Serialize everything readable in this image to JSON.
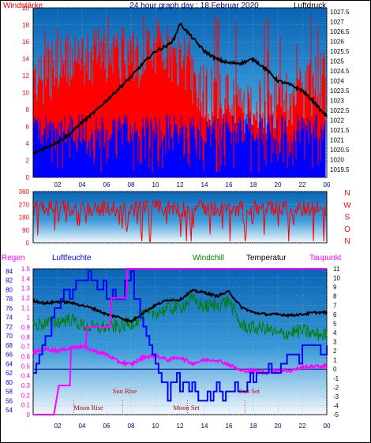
{
  "colors": {
    "wind_max": "#ff0000",
    "wind_avg": "#0000ff",
    "pressure": "#000000",
    "direction": "#ff0000",
    "humidity": "#0000ff",
    "windchill": "#008000",
    "temperature": "#000000",
    "dewpoint": "#ff00ff",
    "rain": "#ff00ff",
    "sun_rise_set": "#cc0000",
    "moon_rise_set": "#990000"
  },
  "chart_data": [
    {
      "type": "line",
      "title": "24 hour graph day : 18 Februar 2020",
      "left_label": "Windstärke",
      "right_label": "Luftdruck",
      "x_ticks": [
        "02",
        "04",
        "06",
        "08",
        "10",
        "12",
        "14",
        "16",
        "18",
        "20",
        "22",
        "00"
      ],
      "left_axis": {
        "ticks": [
          20,
          18,
          16,
          14,
          12,
          10,
          8,
          6,
          4,
          2,
          0
        ],
        "ylim": [
          0,
          20
        ]
      },
      "right_axis": {
        "ticks": [
          "1027.5",
          "1027",
          "1026.5",
          "1026",
          "1025.5",
          "1025",
          "1024.5",
          "1024",
          "1023.5",
          "1023",
          "1022.5",
          "1022",
          "1021.5",
          "1021",
          "1020.5",
          "1020",
          "1019.5"
        ],
        "ylim": [
          1019.1,
          1027.7
        ]
      },
      "series": [
        {
          "name": "Windstärke",
          "values_desc": "gust bars between about 6 and 20, peak ~20 at 11:30"
        },
        {
          "name": "Luftdruck",
          "x": [
            0,
            1,
            2,
            3,
            4,
            5,
            6,
            7,
            8,
            9,
            10,
            11,
            11.5,
            12,
            13,
            14,
            15,
            16,
            17,
            18,
            19,
            20,
            21,
            22,
            23,
            23.5,
            24
          ],
          "values": [
            1020.3,
            1020.6,
            1020.9,
            1021.3,
            1021.9,
            1022.4,
            1023.0,
            1023.6,
            1024.2,
            1024.9,
            1025.5,
            1025.8,
            1026.1,
            1026.9,
            1026.2,
            1025.5,
            1025.1,
            1024.9,
            1024.9,
            1025.1,
            1024.6,
            1024.0,
            1023.8,
            1023.5,
            1022.9,
            1022.5,
            1022.2
          ]
        }
      ]
    },
    {
      "type": "line",
      "left_axis": {
        "ticks": [
          360,
          270,
          180,
          90,
          0
        ],
        "ylim": [
          0,
          360
        ]
      },
      "right_labels": [
        "N",
        "W",
        "S",
        "O",
        "N"
      ],
      "series": [
        {
          "name": "direction",
          "values_desc": "scatter mostly between 150 and 330 degrees"
        }
      ]
    },
    {
      "type": "line",
      "legend": [
        "Regen",
        "Luftfeuchte",
        "Windchill",
        "Temperatur",
        "Taupunkt"
      ],
      "x_ticks": [
        "02",
        "04",
        "06",
        "08",
        "10",
        "12",
        "14",
        "16",
        "18",
        "20",
        "22",
        "00"
      ],
      "left_axis_rain": {
        "ticks": [
          "1.5",
          "1.4",
          "1.3",
          "1.2",
          "1.1",
          "1",
          "0.9",
          "0.8",
          "0.7",
          "0.6",
          "0.5",
          "0.4",
          "0.3",
          "0.2",
          "0.1",
          "0"
        ],
        "ylim": [
          0,
          1.5
        ]
      },
      "left_axis_humidity": {
        "ticks": [
          84,
          82,
          80,
          78,
          76,
          74,
          72,
          70,
          68,
          66,
          64,
          62,
          60,
          58,
          56,
          54
        ],
        "ylim": [
          53,
          84.5
        ]
      },
      "right_axis": {
        "ticks": [
          11,
          10,
          9,
          8,
          7,
          6,
          5,
          4,
          3,
          2,
          1,
          0,
          -1,
          -2,
          -3,
          -4,
          -5
        ],
        "ylim": [
          -5,
          11
        ]
      },
      "annotations": [
        "Moon Rise",
        "Sun Rise",
        "Moon Set",
        "Sun Set"
      ],
      "annotation_hours": [
        3.3,
        7.3,
        12.6,
        17.3
      ],
      "series": [
        {
          "name": "Temperatur",
          "x": [
            0,
            1,
            2,
            3,
            4,
            5,
            6,
            7,
            8,
            9,
            10,
            11,
            12,
            13,
            14,
            15,
            16,
            17,
            18,
            19,
            20,
            21,
            22,
            23,
            24
          ],
          "values": [
            7.5,
            7.2,
            7.4,
            7.3,
            7.0,
            6.6,
            6.0,
            5.7,
            5.2,
            6.2,
            7.0,
            7.6,
            7.6,
            8.6,
            8.4,
            8.0,
            8.5,
            6.8,
            6.2,
            6.0,
            6.0,
            5.9,
            6.0,
            6.2,
            6.2
          ]
        },
        {
          "name": "Windchill",
          "x": [
            0,
            1,
            2,
            3,
            4,
            5,
            6,
            7,
            8,
            9,
            10,
            11,
            12,
            13,
            14,
            15,
            16,
            17,
            18,
            19,
            20,
            21,
            22,
            23,
            24
          ],
          "values": [
            4.8,
            5.0,
            5.2,
            5.5,
            4.8,
            4.5,
            4.6,
            4.7,
            5.0,
            5.8,
            6.2,
            6.6,
            6.8,
            7.6,
            6.8,
            7.0,
            7.5,
            4.8,
            4.5,
            4.5,
            3.8,
            4.0,
            4.2,
            3.8,
            3.8
          ]
        },
        {
          "name": "Taupunkt",
          "x": [
            0,
            1,
            2,
            3,
            4,
            5,
            6,
            7,
            8,
            9,
            10,
            11,
            12,
            13,
            14,
            15,
            16,
            17,
            18,
            19,
            20,
            21,
            22,
            23,
            24
          ],
          "values": [
            1.8,
            2.2,
            2.0,
            2.3,
            2.5,
            2.0,
            1.6,
            0.8,
            0.5,
            1.3,
            1.5,
            1.0,
            1.3,
            0.6,
            1.0,
            1.0,
            0.5,
            -0.2,
            -0.2,
            -0.4,
            -0.1,
            -0.2,
            0.2,
            0.3,
            0.3
          ]
        },
        {
          "name": "Luftfeuchte",
          "x": [
            0,
            1,
            2,
            3,
            4,
            5,
            6,
            7,
            8,
            9,
            10,
            11,
            12,
            13,
            14,
            15,
            16,
            17,
            18,
            19,
            20,
            21,
            22,
            23,
            24
          ],
          "values": [
            64,
            70,
            76,
            80,
            83,
            82,
            80,
            78,
            82,
            72,
            63,
            57,
            60,
            58,
            56,
            58,
            56,
            60,
            62,
            62,
            63,
            65,
            66,
            68,
            68
          ]
        },
        {
          "name": "Regen",
          "x": [
            0,
            1.7,
            2.1,
            3.0,
            3.1,
            4.3,
            4.4,
            6.3,
            6.4,
            7.6,
            7.7,
            24
          ],
          "values": [
            0,
            0,
            0.3,
            0.3,
            0.7,
            0.7,
            0.9,
            0.9,
            1.2,
            1.2,
            1.5,
            1.5
          ]
        }
      ]
    }
  ],
  "labels": {
    "title": "24 hour graph day : 18 Februar 2020",
    "windstaerke": "Windstärke",
    "luftdruck": "Luftdruck",
    "regen": "Regen",
    "luftfeuchte": "Luftfeuchte",
    "windchill": "Windchill",
    "temperatur": "Temperatur",
    "taupunkt": "Taupunkt",
    "moon_rise": "Moon Rise",
    "sun_rise": "Sun Rise",
    "moon_set": "Moon Set",
    "sun_set": "Sun Set"
  }
}
